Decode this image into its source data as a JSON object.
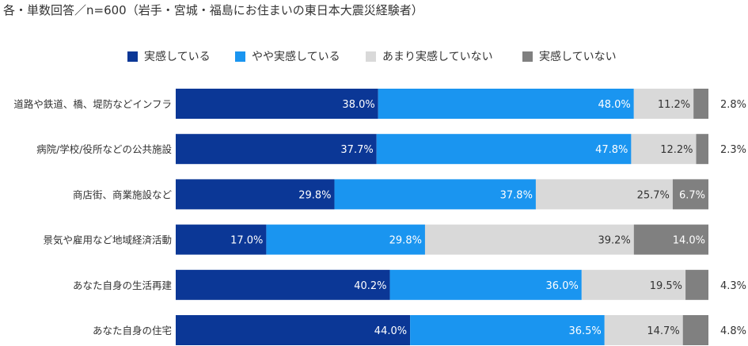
{
  "title": "各・単数回答／n=600（岩手・宮城・福島にお住まいの東日本大震災経験者）",
  "legend": [
    {
      "label": "実感している",
      "color": "#0b3796"
    },
    {
      "label": "やや実感している",
      "color": "#1a95f0"
    },
    {
      "label": "あまり実感していない",
      "color": "#d9d9d9"
    },
    {
      "label": "実感していない",
      "color": "#808080"
    }
  ],
  "chart_data": {
    "type": "bar",
    "orientation": "horizontal",
    "stacked": true,
    "percent_stacked": true,
    "xlim": [
      0,
      100
    ],
    "categories": [
      "道路や鉄道、橋、堤防などインフラ",
      "病院/学校/役所などの公共施設",
      "商店街、商業施設など",
      "景気や雇用など地域経済活動",
      "あなた自身の生活再建",
      "あなた自身の住宅"
    ],
    "series": [
      {
        "name": "実感している",
        "color": "#0b3796",
        "values": [
          38.0,
          37.7,
          29.8,
          17.0,
          40.2,
          44.0
        ]
      },
      {
        "name": "やや実感している",
        "color": "#1a95f0",
        "values": [
          48.0,
          47.8,
          37.8,
          29.8,
          36.0,
          36.5
        ]
      },
      {
        "name": "あまり実感していない",
        "color": "#d9d9d9",
        "values": [
          11.2,
          12.2,
          25.7,
          39.2,
          19.5,
          14.7
        ]
      },
      {
        "name": "実感していない",
        "color": "#808080",
        "values": [
          2.8,
          2.3,
          6.7,
          14.0,
          4.3,
          4.8
        ]
      }
    ],
    "value_suffix": "%",
    "grid": false,
    "legend_position": "top"
  }
}
